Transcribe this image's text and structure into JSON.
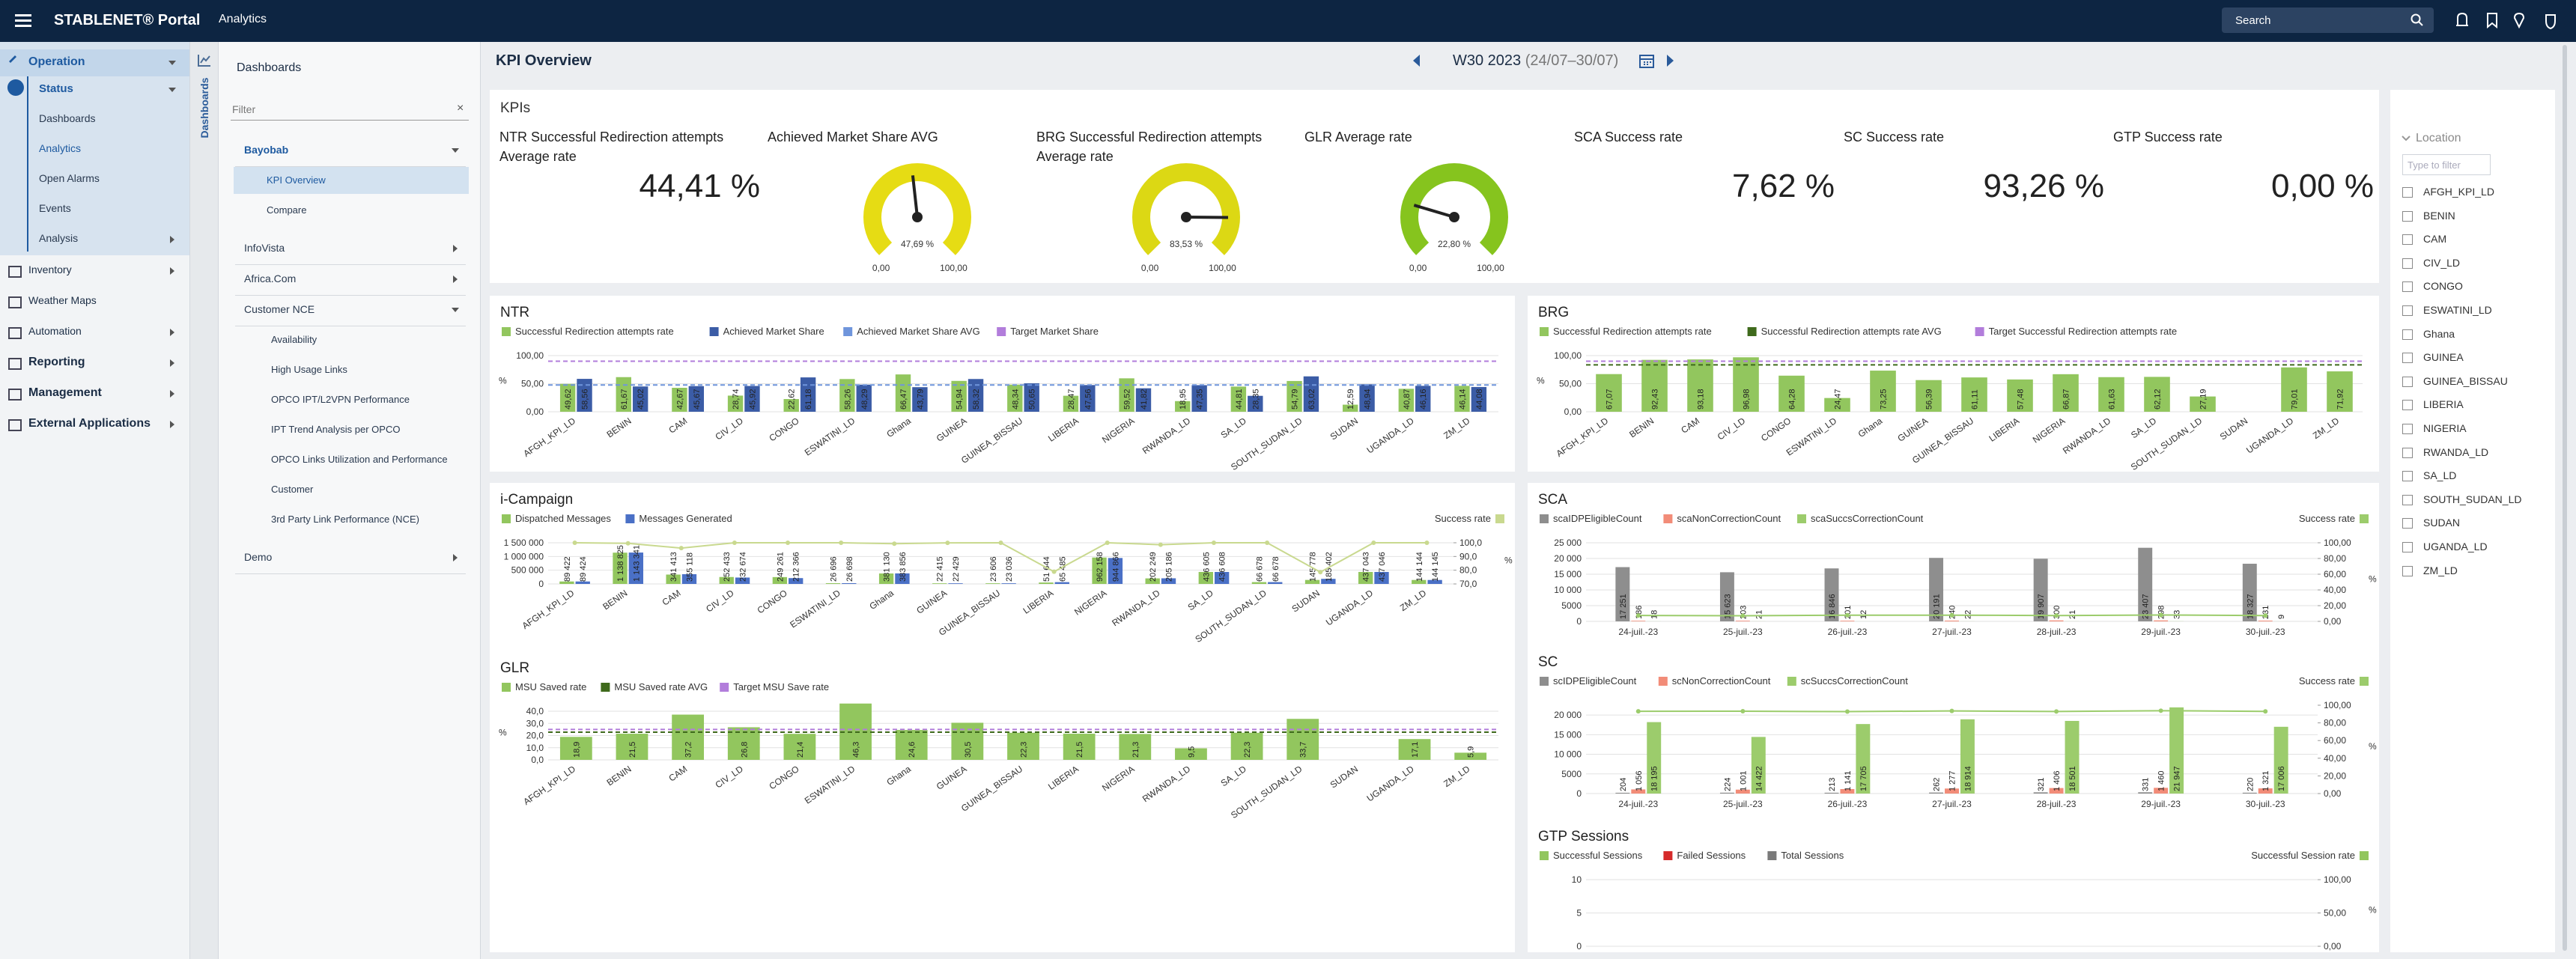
{
  "topbar": {
    "brand": "STABLENET® Portal",
    "section": "Analytics",
    "search": "Search"
  },
  "sidebar": {
    "items": [
      {
        "label": "Operation",
        "children": [
          {
            "label": "Status",
            "children": [
              "Dashboards",
              "Analytics",
              "Open Alarms",
              "Events",
              "Analysis"
            ]
          }
        ]
      },
      {
        "label": "Inventory"
      },
      {
        "label": "Weather Maps"
      },
      {
        "label": "Automation"
      },
      {
        "label": "Reporting"
      },
      {
        "label": "Management"
      },
      {
        "label": "External Applications"
      }
    ]
  },
  "tab": "Dashboards",
  "dashboards": {
    "title": "Dashboards",
    "filter": "Filter",
    "groups": [
      {
        "label": "Bayobab",
        "items": [
          "KPI Overview",
          "Compare"
        ]
      },
      {
        "label": "InfoVista"
      },
      {
        "label": "Africa.Com"
      },
      {
        "label": "Customer NCE",
        "items": [
          "Availability",
          "High Usage Links",
          "OPCO IPT/L2VPN Performance",
          "IPT Trend Analysis per OPCO",
          "OPCO Links Utilization and Performance",
          "Customer",
          "3rd Party Link Performance (NCE)"
        ]
      },
      {
        "label": "Demo"
      }
    ]
  },
  "header": {
    "title": "KPI Overview",
    "week": "W30 2023",
    "range": "(24/07–30/07)"
  },
  "kpis": {
    "title": "KPIs",
    "items": [
      {
        "name": "NTR Successful Redirection attempts Average rate",
        "value": "44,41 %"
      },
      {
        "name": "Achieved Market Share AVG",
        "type": "gauge",
        "value": 47.69,
        "label": "47,69 %",
        "min": {
          "value": 0,
          "label": "0,00"
        },
        "max": {
          "value": 100,
          "label": "100,00"
        },
        "color": "#e6dc14"
      },
      {
        "name": "BRG Successful Redirection attempts Average rate",
        "type": "gauge",
        "value": 83.53,
        "label": "83,53 %",
        "min": {
          "value": 0,
          "label": "0,00"
        },
        "max": {
          "value": 100,
          "label": "100,00"
        },
        "color": "#dcd814"
      },
      {
        "name": "GLR Average rate",
        "type": "gauge",
        "value": 22.8,
        "label": "22,80 %",
        "min": {
          "value": 0,
          "label": "0,00"
        },
        "max": {
          "value": 100,
          "label": "100,00"
        },
        "color": "#86c41e"
      },
      {
        "name": "SCA Success rate",
        "value": "7,62 %"
      },
      {
        "name": "SC Success rate",
        "value": "93,26 %"
      },
      {
        "name": "GTP Success rate",
        "value": "0,00 %"
      }
    ]
  },
  "chart_data": [
    {
      "type": "bar",
      "title": "NTR",
      "yunit": "%",
      "categories": [
        "AFGH_KPI_LD",
        "BENIN",
        "CAM",
        "CIV_LD",
        "CONGO",
        "ESWATINI_LD",
        "Ghana",
        "GUINEA",
        "GUINEA_BISSAU",
        "LIBERIA",
        "NIGERIA",
        "RWANDA_LD",
        "SA_LD",
        "SOUTH_SUDAN_LD",
        "SUDAN",
        "UGANDA_LD",
        "ZM_LD"
      ],
      "ylim": [
        0,
        100
      ],
      "yticks": [
        {
          "value": 0,
          "label": "0,00"
        },
        {
          "value": 50,
          "label": "50,00"
        },
        {
          "value": 100,
          "label": "100,00"
        }
      ],
      "series": [
        {
          "name": "Successful Redirection attempts rate",
          "color": "#92c65e",
          "values": [
            49.62,
            61.67,
            42.67,
            28.74,
            22.62,
            58.26,
            66.47,
            54.94,
            48.34,
            28.47,
            59.52,
            18.95,
            44.81,
            54.79,
            12.59,
            40.87,
            46.14
          ],
          "value_labels": [
            "49,62",
            "61,67",
            "42,67",
            "28,74",
            "22,62",
            "58,26",
            "66,47",
            "54,94",
            "48,34",
            "28,47",
            "59,52",
            "18,95",
            "44,81",
            "54,79",
            "12,59",
            "40,87",
            "46,14"
          ]
        },
        {
          "name": "Achieved Market Share",
          "color": "#3b5ca6",
          "values": [
            58.56,
            45.02,
            45.67,
            45.92,
            61.18,
            48.29,
            43.79,
            58.32,
            50.65,
            47.56,
            41.82,
            47.35,
            28.35,
            63.02,
            48.94,
            46.16,
            44.08
          ],
          "value_labels": [
            "58,56",
            "45,02",
            "45,67",
            "45,92",
            "61,18",
            "48,29",
            "43,79",
            "58,32",
            "50,65",
            "47,56",
            "41,82",
            "47,35",
            "28,35",
            "63,02",
            "48,94",
            "46,16",
            "44,08"
          ]
        },
        {
          "name": "Achieved Market Share AVG",
          "color": "#6f95dc",
          "type": "reference",
          "value": 47.69
        },
        {
          "name": "Target Market Share",
          "color": "#b27ddb",
          "type": "reference",
          "value": 90
        }
      ]
    },
    {
      "type": "bar",
      "title": "BRG",
      "yunit": "%",
      "categories": [
        "AFGH_KPI_LD",
        "BENIN",
        "CAM",
        "CIV_LD",
        "CONGO",
        "ESWATINI_LD",
        "Ghana",
        "GUINEA",
        "GUINEA_BISSAU",
        "LIBERIA",
        "NIGERIA",
        "RWANDA_LD",
        "SA_LD",
        "SOUTH_SUDAN_LD",
        "SUDAN",
        "UGANDA_LD",
        "ZM_LD"
      ],
      "ylim": [
        0,
        100
      ],
      "yticks": [
        {
          "value": 0,
          "label": "0,00"
        },
        {
          "value": 50,
          "label": "50,00"
        },
        {
          "value": 100,
          "label": "100,00"
        }
      ],
      "series": [
        {
          "name": "Successful Redirection attempts rate",
          "color": "#92c65e",
          "values": [
            67.07,
            92.43,
            93.18,
            96.98,
            64.28,
            24.47,
            73.25,
            56.39,
            61.11,
            57.48,
            66.87,
            61.63,
            62.12,
            27.19,
            null,
            79.01,
            71.92
          ],
          "value_labels": [
            "67,07",
            "92,43",
            "93,18",
            "96,98",
            "64,28",
            "24,47",
            "73,25",
            "56,39",
            "61,11",
            "57,48",
            "66,87",
            "61,63",
            "62,12",
            "27,19",
            null,
            "79,01",
            "71,92"
          ]
        },
        {
          "name": "Successful Redirection attempts rate AVG",
          "color": "#3f6a1c",
          "type": "reference",
          "value": 83.53
        },
        {
          "name": "Target Successful Redirection attempts rate",
          "color": "#b27ddb",
          "type": "reference",
          "value": 90
        }
      ]
    },
    {
      "type": "bar",
      "title": "i-Campaign",
      "y2unit": "%",
      "categories": [
        "AFGH_KPI_LD",
        "BENIN",
        "CAM",
        "CIV_LD",
        "CONGO",
        "ESWATINI_LD",
        "Ghana",
        "GUINEA",
        "GUINEA_BISSAU",
        "LIBERIA",
        "NIGERIA",
        "RWANDA_LD",
        "SA_LD",
        "SOUTH_SUDAN_LD",
        "SUDAN",
        "UGANDA_LD",
        "ZM_LD"
      ],
      "ylim": [
        0,
        1500000
      ],
      "yticks": [
        0,
        {
          "value": 500000,
          "label": "500 000"
        },
        {
          "value": 1000000,
          "label": "1 000 000"
        },
        {
          "value": 1500000,
          "label": "1 500 000"
        }
      ],
      "y2lim": [
        70,
        100
      ],
      "y2ticks": [
        {
          "value": 70,
          "label": "70,0"
        },
        {
          "value": 80,
          "label": "80,0"
        },
        {
          "value": 90,
          "label": "90,0"
        },
        {
          "value": 100,
          "label": "100,0"
        }
      ],
      "series": [
        {
          "name": "Dispatched Messages",
          "color": "#92c65e",
          "values": [
            89422,
            1138825,
            341413,
            252433,
            249261,
            26696,
            381130,
            22415,
            23606,
            51644,
            962158,
            202249,
            436605,
            66678,
            145778,
            437043,
            144144
          ],
          "value_labels": [
            "89 422",
            "1 138 825",
            "341 413",
            "252 433",
            "249 261",
            "26 696",
            "381 130",
            "22 415",
            "23 606",
            "51 644",
            "962 158",
            "202 249",
            "436 605",
            "66 678",
            "145 778",
            "437 043",
            "144 144"
          ]
        },
        {
          "name": "Messages Generated",
          "color": "#4a70c6",
          "values": [
            89424,
            1143341,
            355118,
            232674,
            212366,
            26698,
            383856,
            22429,
            23036,
            65485,
            944866,
            205186,
            436608,
            66678,
            185402,
            437046,
            144145
          ],
          "value_labels": [
            "89 424",
            "1 143 341",
            "355 118",
            "232 674",
            "212 366",
            "26 698",
            "383 856",
            "22 429",
            "23 036",
            "65 485",
            "944 866",
            "205 186",
            "436 608",
            "66 678",
            "185 402",
            "437 046",
            "144 145"
          ]
        },
        {
          "name": "Success rate",
          "color": "#c9d98f",
          "type": "line",
          "axis": "y2",
          "values": [
            99.99,
            99.6,
            96.1,
            100,
            100,
            99.99,
            99.3,
            99.94,
            100,
            78.9,
            100,
            98.6,
            100,
            100,
            78.6,
            99.99,
            100
          ]
        }
      ]
    },
    {
      "type": "bar",
      "title": "GLR",
      "yunit": "%",
      "categories": [
        "AFGH_KPI_LD",
        "BENIN",
        "CAM",
        "CIV_LD",
        "CONGO",
        "ESWATINI_LD",
        "Ghana",
        "GUINEA",
        "GUINEA_BISSAU",
        "LIBERIA",
        "NIGERIA",
        "RWANDA_LD",
        "SA_LD",
        "SOUTH_SUDAN_LD",
        "SUDAN",
        "UGANDA_LD",
        "ZM_LD"
      ],
      "ylim": [
        0,
        40
      ],
      "yticks": [
        {
          "value": 0,
          "label": "0,0"
        },
        {
          "value": 10,
          "label": "10,0"
        },
        {
          "value": 20,
          "label": "20,0"
        },
        {
          "value": 30,
          "label": "30,0"
        },
        {
          "value": 40,
          "label": "40,0"
        }
      ],
      "series": [
        {
          "name": "MSU Saved rate",
          "color": "#92c65e",
          "values": [
            18.9,
            21.5,
            37.2,
            26.8,
            21.4,
            46.3,
            24.6,
            30.5,
            22.3,
            21.5,
            21.3,
            9.5,
            22.3,
            33.7,
            null,
            17.1,
            5.9
          ],
          "value_labels": [
            "18,9",
            "21,5",
            "37,2",
            "26,8",
            "21,4",
            "46,3",
            "24,6",
            "30,5",
            "22,3",
            "21,5",
            "21,3",
            "9,5",
            "22,3",
            "33,7",
            null,
            "17,1",
            "5,9"
          ]
        },
        {
          "name": "MSU Saved rate AVG",
          "color": "#3f6a1c",
          "type": "reference",
          "value": 22.8
        },
        {
          "name": "Target MSU Save rate",
          "color": "#b27ddb",
          "type": "reference",
          "value": 25
        }
      ]
    },
    {
      "type": "bar",
      "title": "SCA",
      "y2unit": "%",
      "categories": [
        "24-juil.-23",
        "25-juil.-23",
        "26-juil.-23",
        "27-juil.-23",
        "28-juil.-23",
        "29-juil.-23",
        "30-juil.-23"
      ],
      "ylim": [
        0,
        25000
      ],
      "yticks": [
        0,
        5000,
        {
          "value": 10000,
          "label": "10 000"
        },
        {
          "value": 15000,
          "label": "15 000"
        },
        {
          "value": 20000,
          "label": "20 000"
        },
        {
          "value": 25000,
          "label": "25 000"
        }
      ],
      "y2lim": [
        0,
        100
      ],
      "y2ticks": [
        {
          "value": 0,
          "label": "0,00"
        },
        {
          "value": 20,
          "label": "20,00"
        },
        {
          "value": 40,
          "label": "40,00"
        },
        {
          "value": 60,
          "label": "60,00"
        },
        {
          "value": 80,
          "label": "80,00"
        },
        {
          "value": 100,
          "label": "100,00"
        }
      ],
      "series": [
        {
          "name": "scaIDPEligibleCount",
          "color": "#8e8e8e",
          "values": [
            17251,
            15623,
            16846,
            20191,
            19907,
            23407,
            18327
          ],
          "value_labels": [
            "17 251",
            "15 623",
            "16 846",
            "20 191",
            "19 907",
            "23 407",
            "18 327"
          ]
        },
        {
          "name": "scaNonCorrectionCount",
          "color": "#f28c78",
          "values": [
            186,
            203,
            201,
            240,
            300,
            298,
            231
          ],
          "value_labels": [
            "186",
            "203",
            "201",
            "240",
            "300",
            "298",
            "231"
          ]
        },
        {
          "name": "scaSuccsCorrectionCount",
          "color": "#9ccc6c",
          "values": [
            18,
            21,
            12,
            22,
            21,
            33,
            9
          ],
          "value_labels": [
            "18",
            "21",
            "12",
            "22",
            "21",
            "33",
            "9"
          ]
        },
        {
          "name": "Success rate",
          "color": "#9ccc6c",
          "type": "line",
          "axis": "y2",
          "values": [
            7.5,
            7.2,
            7.8,
            7.9,
            7.4,
            8.1,
            7.4
          ]
        }
      ]
    },
    {
      "type": "bar",
      "title": "SC",
      "y2unit": "%",
      "categories": [
        "24-juil.-23",
        "25-juil.-23",
        "26-juil.-23",
        "27-juil.-23",
        "28-juil.-23",
        "29-juil.-23",
        "30-juil.-23"
      ],
      "ylim": [
        0,
        22500
      ],
      "yticks": [
        0,
        5000,
        {
          "value": 10000,
          "label": "10 000"
        },
        {
          "value": 15000,
          "label": "15 000"
        },
        {
          "value": 20000,
          "label": "20 000"
        }
      ],
      "y2lim": [
        0,
        100
      ],
      "y2ticks": [
        {
          "value": 0,
          "label": "0,00"
        },
        {
          "value": 20,
          "label": "20,00"
        },
        {
          "value": 40,
          "label": "40,00"
        },
        {
          "value": 60,
          "label": "60,00"
        },
        {
          "value": 80,
          "label": "80,00"
        },
        {
          "value": 100,
          "label": "100,00"
        }
      ],
      "series": [
        {
          "name": "scIDPEligibleCount",
          "color": "#8e8e8e",
          "values": [
            204,
            224,
            213,
            262,
            321,
            331,
            220
          ],
          "value_labels": [
            "204",
            "224",
            "213",
            "262",
            "321",
            "331",
            "220"
          ]
        },
        {
          "name": "scNonCorrectionCount",
          "color": "#f28c78",
          "values": [
            1056,
            1001,
            1141,
            1277,
            1406,
            1460,
            1321
          ],
          "value_labels": [
            "1 056",
            "1 001",
            "1 141",
            "1 277",
            "1 406",
            "1 460",
            "1 321"
          ]
        },
        {
          "name": "scSuccsCorrectionCount",
          "color": "#9ccc6c",
          "values": [
            18195,
            14422,
            17705,
            18914,
            18501,
            21947,
            17006
          ],
          "value_labels": [
            "18 195",
            "14 422",
            "17 705",
            "18 914",
            "18 501",
            "21 947",
            "17 006"
          ]
        },
        {
          "name": "Success rate",
          "color": "#9ccc6c",
          "type": "line",
          "axis": "y2",
          "values": [
            93.1,
            93.2,
            92.8,
            93.5,
            92.9,
            93.8,
            93.0
          ]
        }
      ]
    },
    {
      "type": "bar",
      "title": "GTP Sessions",
      "y2unit": "%",
      "categories": [],
      "ylim": [
        0,
        10
      ],
      "yticks": [
        0,
        5,
        10
      ],
      "y2lim": [
        0,
        100
      ],
      "y2ticks": [
        {
          "value": 0,
          "label": "0,00"
        },
        {
          "value": 50,
          "label": "50,00"
        },
        {
          "value": 100,
          "label": "100,00"
        }
      ],
      "series": [
        {
          "name": "Successful Sessions",
          "color": "#92c65e",
          "values": []
        },
        {
          "name": "Failed Sessions",
          "color": "#d62b2b",
          "values": []
        },
        {
          "name": "Total Sessions",
          "color": "#7a7a7a",
          "values": []
        },
        {
          "name": "Successful Session rate",
          "color": "#92c65e",
          "type": "line",
          "axis": "y2",
          "values": []
        }
      ]
    }
  ],
  "location": {
    "title": "Location",
    "filter": "Type to filter",
    "items": [
      "AFGH_KPI_LD",
      "BENIN",
      "CAM",
      "CIV_LD",
      "CONGO",
      "ESWATINI_LD",
      "Ghana",
      "GUINEA",
      "GUINEA_BISSAU",
      "LIBERIA",
      "NIGERIA",
      "RWANDA_LD",
      "SA_LD",
      "SOUTH_SUDAN_LD",
      "SUDAN",
      "UGANDA_LD",
      "ZM_LD"
    ]
  }
}
